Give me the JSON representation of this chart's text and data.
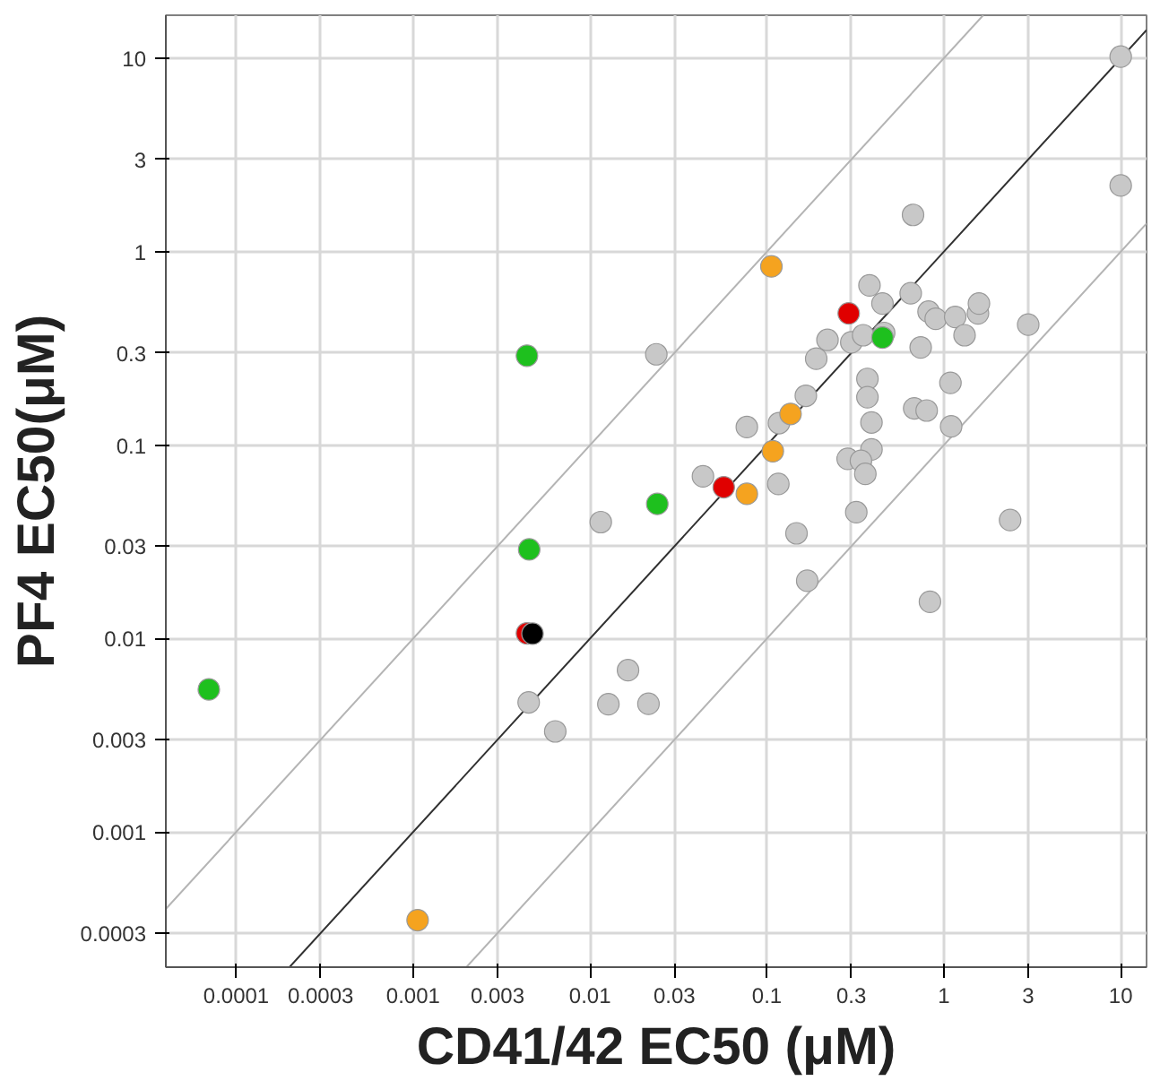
{
  "chart_data": {
    "type": "scatter",
    "xlabel": "CD41/42 EC50 (μM)",
    "ylabel": "PF4 EC50(μM)",
    "log": "xy",
    "grid": true,
    "marker": "circle",
    "xlim": [
      4e-05,
      14
    ],
    "ylim": [
      0.0002,
      16.7
    ],
    "xticks": [
      0.0001,
      0.0003,
      0.001,
      0.003,
      0.01,
      0.03,
      0.1,
      0.3,
      1,
      3,
      10
    ],
    "yticks": [
      0.0003,
      0.001,
      0.003,
      0.01,
      0.03,
      0.1,
      0.3,
      1,
      3,
      10
    ],
    "series": [
      {
        "type": "line",
        "marker": "none",
        "color": "#b4b4b4",
        "x": [
          4e-05,
          1.67
        ],
        "values": [
          0.0004,
          16.7
        ]
      },
      {
        "type": "line",
        "marker": "none",
        "color": "#b4b4b4",
        "x": [
          0.002,
          14
        ],
        "values": [
          0.0002,
          1.4
        ]
      },
      {
        "type": "line",
        "marker": "none",
        "color": "#303030",
        "x": [
          0.0002,
          14
        ],
        "values": [
          0.0002,
          14
        ]
      },
      {
        "color": "#c8c8c8",
        "x": [
          10,
          10,
          0.67,
          0.38,
          0.45,
          0.65,
          0.82,
          0.9,
          1.16,
          1.56,
          1.58,
          1.31,
          3.0,
          0.46,
          0.22,
          0.3,
          0.35,
          0.74,
          0.19,
          0.0237,
          0.37,
          1.09,
          0.37,
          0.166,
          0.117,
          0.077,
          0.39,
          0.68,
          0.8,
          1.1,
          0.39,
          0.286,
          0.34,
          0.36,
          0.0435,
          0.116,
          0.0115,
          0.32,
          2.37,
          0.147,
          0.169,
          0.835,
          0.0164,
          0.0127,
          0.0214,
          0.0045,
          0.00636
        ],
        "values": [
          10.2,
          2.2,
          1.55,
          0.67,
          0.54,
          0.61,
          0.49,
          0.45,
          0.46,
          0.48,
          0.54,
          0.37,
          0.42,
          0.38,
          0.35,
          0.34,
          0.37,
          0.32,
          0.28,
          0.295,
          0.22,
          0.21,
          0.177,
          0.18,
          0.13,
          0.124,
          0.131,
          0.155,
          0.151,
          0.125,
          0.095,
          0.085,
          0.083,
          0.071,
          0.069,
          0.063,
          0.04,
          0.045,
          0.041,
          0.035,
          0.0199,
          0.0155,
          0.00686,
          0.00458,
          0.0046,
          0.00468,
          0.00331
        ]
      },
      {
        "color": "#f5a31f",
        "x": [
          0.106,
          0.136,
          0.108,
          0.077,
          0.00106
        ],
        "values": [
          0.84,
          0.145,
          0.093,
          0.056,
          0.00035
        ]
      },
      {
        "color": "#e00000",
        "x": [
          0.29,
          0.057,
          0.0044
        ],
        "values": [
          0.48,
          0.0606,
          0.01064
        ]
      },
      {
        "color": "#000000",
        "x": [
          0.00473
        ],
        "values": [
          0.0106
        ]
      },
      {
        "color": "#1ec01e",
        "x": [
          0.0044,
          0.45,
          0.024,
          0.00453,
          7e-05
        ],
        "values": [
          0.29,
          0.36,
          0.0497,
          0.0289,
          0.00546
        ]
      }
    ]
  }
}
